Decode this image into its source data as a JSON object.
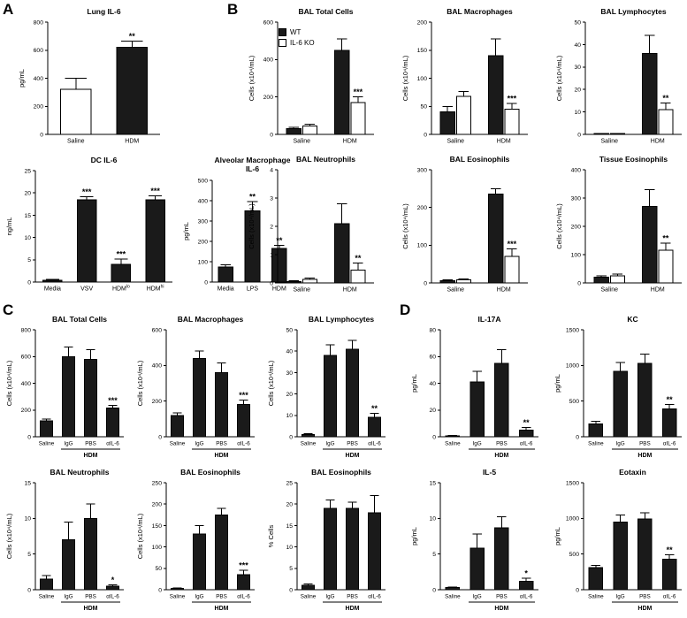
{
  "panels": {
    "a": "A",
    "b": "B",
    "c": "C",
    "d": "D"
  },
  "legend": {
    "items": [
      {
        "label": "WT",
        "fill": "#1a1a1a"
      },
      {
        "label": "IL-6 KO",
        "fill": "#ffffff"
      }
    ]
  },
  "chart_data": [
    {
      "panel": "A",
      "type": "bar",
      "title": "Lung IL-6",
      "ylabel": "pg/mL",
      "ylim": [
        0,
        800
      ],
      "yticks": [
        0,
        200,
        400,
        600,
        800
      ],
      "categories": [
        "Saline",
        "HDM"
      ],
      "values": [
        320,
        620
      ],
      "errors": [
        80,
        45
      ],
      "colors": [
        "#ffffff",
        "#1a1a1a"
      ],
      "sig": [
        "",
        "**"
      ]
    },
    {
      "panel": "A",
      "type": "bar",
      "title": "DC IL-6",
      "ylabel": "ng/mL",
      "ylim": [
        0,
        25
      ],
      "yticks": [
        0,
        5,
        10,
        15,
        20,
        25
      ],
      "categories": [
        "Media",
        "VSV",
        "HDM^lo",
        "HDM^hi"
      ],
      "values": [
        0.4,
        18.5,
        4,
        18.5
      ],
      "errors": [
        0.2,
        0.6,
        1.2,
        0.8
      ],
      "colors": [
        "#1a1a1a",
        "#1a1a1a",
        "#1a1a1a",
        "#1a1a1a"
      ],
      "sig": [
        "",
        "***",
        "***",
        "***"
      ]
    },
    {
      "panel": "A",
      "type": "bar",
      "title": "Alveolar Macrophage\nIL-6",
      "ylabel": "pg/mL",
      "ylim": [
        0,
        500
      ],
      "yticks": [
        0,
        100,
        200,
        300,
        400,
        500
      ],
      "categories": [
        "Media",
        "LPS",
        "HDM"
      ],
      "values": [
        75,
        350,
        165
      ],
      "errors": [
        10,
        45,
        15
      ],
      "colors": [
        "#1a1a1a",
        "#1a1a1a",
        "#1a1a1a"
      ],
      "sig": [
        "",
        "**",
        "**"
      ]
    },
    {
      "panel": "B",
      "type": "bar",
      "title": "BAL Total Cells",
      "ylabel": "Cells (x10⁴/mL)",
      "ylim": [
        0,
        600
      ],
      "yticks": [
        0,
        200,
        400,
        600
      ],
      "categories": [
        "Saline",
        "HDM"
      ],
      "series": [
        {
          "name": "WT",
          "fill": "#1a1a1a",
          "values": [
            30,
            450
          ],
          "errors": [
            8,
            60
          ],
          "sig": [
            "",
            ""
          ]
        },
        {
          "name": "IL-6 KO",
          "fill": "#ffffff",
          "values": [
            45,
            170
          ],
          "errors": [
            10,
            30
          ],
          "sig": [
            "",
            "***"
          ]
        }
      ]
    },
    {
      "panel": "B",
      "type": "bar",
      "title": "BAL Macrophages",
      "ylabel": "Cells (x10⁴/mL)",
      "ylim": [
        0,
        200
      ],
      "yticks": [
        0,
        50,
        100,
        150,
        200
      ],
      "categories": [
        "Saline",
        "HDM"
      ],
      "series": [
        {
          "name": "WT",
          "fill": "#1a1a1a",
          "values": [
            40,
            140
          ],
          "errors": [
            10,
            30
          ],
          "sig": [
            "",
            ""
          ]
        },
        {
          "name": "IL-6 KO",
          "fill": "#ffffff",
          "values": [
            68,
            45
          ],
          "errors": [
            8,
            10
          ],
          "sig": [
            "",
            "***"
          ]
        }
      ]
    },
    {
      "panel": "B",
      "type": "bar",
      "title": "BAL Lymphocytes",
      "ylabel": "Cells (x10⁴/mL)",
      "ylim": [
        0,
        50
      ],
      "yticks": [
        0,
        10,
        20,
        30,
        40,
        50
      ],
      "categories": [
        "Saline",
        "HDM"
      ],
      "series": [
        {
          "name": "WT",
          "fill": "#1a1a1a",
          "values": [
            0.3,
            36
          ],
          "errors": [
            0,
            8
          ],
          "sig": [
            "",
            ""
          ]
        },
        {
          "name": "IL-6 KO",
          "fill": "#ffffff",
          "values": [
            0.3,
            11
          ],
          "errors": [
            0,
            3
          ],
          "sig": [
            "",
            "**"
          ]
        }
      ]
    },
    {
      "panel": "B",
      "type": "bar",
      "title": "BAL Neutrophils",
      "ylabel": "Cells (x10⁴/mL)",
      "ylim": [
        0,
        4
      ],
      "yticks": [
        0,
        1,
        2,
        3,
        4
      ],
      "categories": [
        "Saline",
        "HDM"
      ],
      "series": [
        {
          "name": "WT",
          "fill": "#1a1a1a",
          "values": [
            0.05,
            2.1
          ],
          "errors": [
            0.03,
            0.7
          ],
          "sig": [
            "",
            ""
          ]
        },
        {
          "name": "IL-6 KO",
          "fill": "#ffffff",
          "values": [
            0.12,
            0.45
          ],
          "errors": [
            0.05,
            0.25
          ],
          "sig": [
            "",
            "**"
          ]
        }
      ]
    },
    {
      "panel": "B",
      "type": "bar",
      "title": "BAL Eosinophils",
      "ylabel": "Cells (x10⁴/mL)",
      "ylim": [
        0,
        300
      ],
      "yticks": [
        0,
        100,
        200,
        300
      ],
      "categories": [
        "Saline",
        "HDM"
      ],
      "series": [
        {
          "name": "WT",
          "fill": "#1a1a1a",
          "values": [
            6,
            235
          ],
          "errors": [
            2,
            15
          ],
          "sig": [
            "",
            ""
          ]
        },
        {
          "name": "IL-6 KO",
          "fill": "#ffffff",
          "values": [
            8,
            70
          ],
          "errors": [
            3,
            20
          ],
          "sig": [
            "",
            "***"
          ]
        }
      ]
    },
    {
      "panel": "B",
      "type": "bar",
      "title": "Tissue Eosinophils",
      "ylabel": "Cells (x10⁴/mL)",
      "ylim": [
        0,
        400
      ],
      "yticks": [
        0,
        100,
        200,
        300,
        400
      ],
      "categories": [
        "Saline",
        "HDM"
      ],
      "series": [
        {
          "name": "WT",
          "fill": "#1a1a1a",
          "values": [
            20,
            270
          ],
          "errors": [
            5,
            60
          ],
          "sig": [
            "",
            ""
          ]
        },
        {
          "name": "IL-6 KO",
          "fill": "#ffffff",
          "values": [
            25,
            115
          ],
          "errors": [
            6,
            25
          ],
          "sig": [
            "",
            "**"
          ]
        }
      ]
    },
    {
      "panel": "C",
      "type": "bar",
      "title": "BAL Total Cells",
      "ylabel": "Cells (x10⁴/mL)",
      "ylim": [
        0,
        800
      ],
      "yticks": [
        0,
        200,
        400,
        600,
        800
      ],
      "categories": [
        "Saline",
        "IgG",
        "PBS",
        "αIL-6"
      ],
      "values": [
        120,
        600,
        580,
        215
      ],
      "errors": [
        12,
        70,
        70,
        20
      ],
      "colors": [
        "#1a1a1a",
        "#1a1a1a",
        "#1a1a1a",
        "#1a1a1a"
      ],
      "sig": [
        "",
        "",
        "",
        "***"
      ],
      "bracket": {
        "label": "HDM",
        "from": 1,
        "to": 3
      }
    },
    {
      "panel": "C",
      "type": "bar",
      "title": "BAL Macrophages",
      "ylabel": "Cells (x10⁴/mL)",
      "ylim": [
        0,
        600
      ],
      "yticks": [
        0,
        200,
        400,
        600
      ],
      "categories": [
        "Saline",
        "IgG",
        "PBS",
        "αIL-6"
      ],
      "values": [
        120,
        440,
        360,
        180
      ],
      "errors": [
        15,
        40,
        55,
        25
      ],
      "colors": [
        "#1a1a1a",
        "#1a1a1a",
        "#1a1a1a",
        "#1a1a1a"
      ],
      "sig": [
        "",
        "",
        "",
        "***"
      ],
      "bracket": {
        "label": "HDM",
        "from": 1,
        "to": 3
      }
    },
    {
      "panel": "C",
      "type": "bar",
      "title": "BAL Lymphocytes",
      "ylabel": "Cells (x10⁴/mL)",
      "ylim": [
        0,
        50
      ],
      "yticks": [
        0,
        10,
        20,
        30,
        40,
        50
      ],
      "categories": [
        "Saline",
        "IgG",
        "PBS",
        "αIL-6"
      ],
      "values": [
        1,
        38,
        41,
        9
      ],
      "errors": [
        0.5,
        5,
        4,
        2
      ],
      "colors": [
        "#1a1a1a",
        "#1a1a1a",
        "#1a1a1a",
        "#1a1a1a"
      ],
      "sig": [
        "",
        "",
        "",
        "**"
      ],
      "bracket": {
        "label": "HDM",
        "from": 1,
        "to": 3
      }
    },
    {
      "panel": "C",
      "type": "bar",
      "title": "BAL Neutrophils",
      "ylabel": "Cells (x10⁴/mL)",
      "ylim": [
        0,
        15
      ],
      "yticks": [
        0,
        5,
        10,
        15
      ],
      "categories": [
        "Saline",
        "IgG",
        "PBS",
        "αIL-6"
      ],
      "values": [
        1.5,
        7,
        10,
        0.5
      ],
      "errors": [
        0.5,
        2.5,
        2,
        0.2
      ],
      "colors": [
        "#1a1a1a",
        "#1a1a1a",
        "#1a1a1a",
        "#1a1a1a"
      ],
      "sig": [
        "",
        "",
        "",
        "*"
      ],
      "bracket": {
        "label": "HDM",
        "from": 1,
        "to": 3
      }
    },
    {
      "panel": "C",
      "type": "bar",
      "title": "BAL Eosinophils",
      "ylabel": "Cells (x10⁴/mL)",
      "ylim": [
        0,
        250
      ],
      "yticks": [
        0,
        50,
        100,
        150,
        200,
        250
      ],
      "categories": [
        "Saline",
        "IgG",
        "PBS",
        "αIL-6"
      ],
      "values": [
        3,
        130,
        175,
        35
      ],
      "errors": [
        1,
        20,
        15,
        10
      ],
      "colors": [
        "#1a1a1a",
        "#1a1a1a",
        "#1a1a1a",
        "#1a1a1a"
      ],
      "sig": [
        "",
        "",
        "",
        "***"
      ],
      "bracket": {
        "label": "HDM",
        "from": 1,
        "to": 3
      }
    },
    {
      "panel": "C",
      "type": "bar",
      "title": "BAL Eosinophils",
      "ylabel": "% Cells",
      "ylim": [
        0,
        25
      ],
      "yticks": [
        0,
        5,
        10,
        15,
        20,
        25
      ],
      "categories": [
        "Saline",
        "IgG",
        "PBS",
        "αIL-6"
      ],
      "values": [
        1,
        19,
        19,
        18
      ],
      "errors": [
        0.3,
        2,
        1.5,
        4
      ],
      "colors": [
        "#1a1a1a",
        "#1a1a1a",
        "#1a1a1a",
        "#1a1a1a"
      ],
      "sig": [
        "",
        "",
        "",
        ""
      ],
      "bracket": {
        "label": "HDM",
        "from": 1,
        "to": 3
      }
    },
    {
      "panel": "D",
      "type": "bar",
      "title": "IL-17A",
      "ylabel": "pg/mL",
      "ylim": [
        0,
        80
      ],
      "yticks": [
        0,
        20,
        40,
        60,
        80
      ],
      "categories": [
        "Saline",
        "IgG",
        "PBS",
        "αIL-6"
      ],
      "values": [
        0.8,
        41,
        55,
        5
      ],
      "errors": [
        0.3,
        8,
        10,
        2
      ],
      "colors": [
        "#1a1a1a",
        "#1a1a1a",
        "#1a1a1a",
        "#1a1a1a"
      ],
      "sig": [
        "",
        "",
        "",
        "**"
      ],
      "bracket": {
        "label": "HDM",
        "from": 1,
        "to": 3
      }
    },
    {
      "panel": "D",
      "type": "bar",
      "title": "KC",
      "ylabel": "pg/mL",
      "ylim": [
        0,
        1500
      ],
      "yticks": [
        0,
        500,
        1000,
        1500
      ],
      "categories": [
        "Saline",
        "IgG",
        "PBS",
        "αIL-6"
      ],
      "values": [
        180,
        920,
        1030,
        390
      ],
      "errors": [
        40,
        120,
        130,
        60
      ],
      "colors": [
        "#1a1a1a",
        "#1a1a1a",
        "#1a1a1a",
        "#1a1a1a"
      ],
      "sig": [
        "",
        "",
        "",
        "**"
      ],
      "bracket": {
        "label": "HDM",
        "from": 1,
        "to": 3
      }
    },
    {
      "panel": "D",
      "type": "bar",
      "title": "IL-5",
      "ylabel": "pg/mL",
      "ylim": [
        0,
        15
      ],
      "yticks": [
        0,
        5,
        10,
        15
      ],
      "categories": [
        "Saline",
        "IgG",
        "PBS",
        "αIL-6"
      ],
      "values": [
        0.3,
        5.8,
        8.7,
        1.2
      ],
      "errors": [
        0.1,
        2,
        1.5,
        0.4
      ],
      "colors": [
        "#1a1a1a",
        "#1a1a1a",
        "#1a1a1a",
        "#1a1a1a"
      ],
      "sig": [
        "",
        "",
        "",
        "*"
      ],
      "bracket": {
        "label": "HDM",
        "from": 1,
        "to": 3
      }
    },
    {
      "panel": "D",
      "type": "bar",
      "title": "Eotaxin",
      "ylabel": "pg/mL",
      "ylim": [
        0,
        1500
      ],
      "yticks": [
        0,
        500,
        1000,
        1500
      ],
      "categories": [
        "Saline",
        "IgG",
        "PBS",
        "αIL-6"
      ],
      "values": [
        310,
        950,
        990,
        430
      ],
      "errors": [
        30,
        100,
        90,
        60
      ],
      "colors": [
        "#1a1a1a",
        "#1a1a1a",
        "#1a1a1a",
        "#1a1a1a"
      ],
      "sig": [
        "",
        "",
        "",
        "**"
      ],
      "bracket": {
        "label": "HDM",
        "from": 1,
        "to": 3
      }
    }
  ]
}
